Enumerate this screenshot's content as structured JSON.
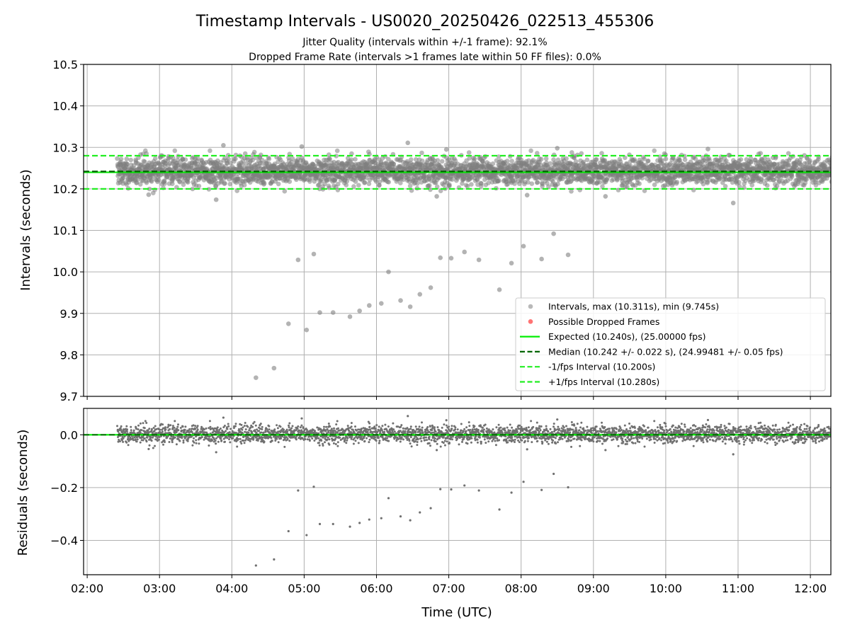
{
  "figure": {
    "title": "Timestamp Intervals - US0020_20250426_022513_455306",
    "subtitle_1": "Jitter Quality (intervals within +/-1 frame): 92.1%",
    "subtitle_2": "Dropped Frame Rate (intervals >1 frames late within 50 FF files): 0.0%"
  },
  "colors": {
    "points": "#808080",
    "dropped": "#ff0000",
    "expected": "#00ee00",
    "median": "#006400",
    "interval_lines": "#22ee22",
    "grid": "#b0b0b0"
  },
  "chart_data": [
    {
      "type": "scatter",
      "panel": "intervals",
      "ylabel": "Intervals (seconds)",
      "ylim": [
        9.7,
        10.5
      ],
      "yticks": [
        "9.7",
        "9.8",
        "9.9",
        "10.0",
        "10.1",
        "10.2",
        "10.3",
        "10.4",
        "10.5"
      ],
      "ytick_values": [
        9.7,
        9.8,
        9.9,
        10.0,
        10.1,
        10.2,
        10.3,
        10.4,
        10.5
      ],
      "grid": true,
      "legend_position": "lower-right",
      "bulk_series": {
        "name": "Intervals, max (10.311s), min (9.745s)",
        "x_range": [
          "02:25",
          "12:25"
        ],
        "center": 10.242,
        "spread": 0.022,
        "count": 3500
      },
      "outliers": [
        {
          "x": "04:20",
          "y": 9.745
        },
        {
          "x": "04:35",
          "y": 9.768
        },
        {
          "x": "04:47",
          "y": 9.875
        },
        {
          "x": "04:55",
          "y": 10.029
        },
        {
          "x": "05:02",
          "y": 9.86
        },
        {
          "x": "05:08",
          "y": 10.043
        },
        {
          "x": "05:13",
          "y": 9.902
        },
        {
          "x": "05:24",
          "y": 9.902
        },
        {
          "x": "05:38",
          "y": 9.892
        },
        {
          "x": "05:46",
          "y": 9.906
        },
        {
          "x": "05:54",
          "y": 9.919
        },
        {
          "x": "06:04",
          "y": 9.924
        },
        {
          "x": "06:10",
          "y": 10.0
        },
        {
          "x": "06:20",
          "y": 9.931
        },
        {
          "x": "06:28",
          "y": 9.916
        },
        {
          "x": "06:36",
          "y": 9.946
        },
        {
          "x": "06:45",
          "y": 9.962
        },
        {
          "x": "06:53",
          "y": 10.034
        },
        {
          "x": "07:02",
          "y": 10.033
        },
        {
          "x": "07:13",
          "y": 10.048
        },
        {
          "x": "07:25",
          "y": 10.029
        },
        {
          "x": "07:42",
          "y": 9.957
        },
        {
          "x": "07:52",
          "y": 10.021
        },
        {
          "x": "08:02",
          "y": 10.062
        },
        {
          "x": "08:17",
          "y": 10.031
        },
        {
          "x": "08:27",
          "y": 10.092
        },
        {
          "x": "08:39",
          "y": 10.041
        }
      ],
      "high_points": [
        {
          "x": "03:53",
          "y": 10.305
        },
        {
          "x": "04:58",
          "y": 10.302
        },
        {
          "x": "06:26",
          "y": 10.311
        },
        {
          "x": "06:58",
          "y": 10.295
        },
        {
          "x": "08:30",
          "y": 10.298
        },
        {
          "x": "10:35",
          "y": 10.296
        }
      ],
      "low_points": [
        {
          "x": "03:47",
          "y": 10.174
        },
        {
          "x": "10:56",
          "y": 10.166
        },
        {
          "x": "06:50",
          "y": 10.182
        },
        {
          "x": "09:10",
          "y": 10.182
        },
        {
          "x": "02:51",
          "y": 10.186
        },
        {
          "x": "08:05",
          "y": 10.185
        }
      ],
      "hlines": [
        {
          "name": "Expected (10.240s), (25.00000 fps)",
          "y": 10.24,
          "style": "solid",
          "color": "#00ee00"
        },
        {
          "name": "Median (10.242 +/- 0.022 s), (24.99481 +/- 0.05 fps)",
          "y": 10.242,
          "style": "dashed",
          "color": "#006400"
        },
        {
          "name": "-1/fps Interval (10.200s)",
          "y": 10.2,
          "style": "dashed",
          "color": "#22ee22"
        },
        {
          "name": "+1/fps Interval (10.280s)",
          "y": 10.28,
          "style": "dashed",
          "color": "#22ee22"
        }
      ],
      "legend": [
        {
          "label": "Intervals, max (10.311s), min (9.745s)",
          "kind": "marker",
          "color": "#808080"
        },
        {
          "label": "Possible Dropped Frames",
          "kind": "marker",
          "color": "#ff0000"
        },
        {
          "label": "Expected (10.240s), (25.00000 fps)",
          "kind": "line",
          "color": "#00ee00"
        },
        {
          "label": "Median (10.242 +/- 0.022 s), (24.99481 +/- 0.05 fps)",
          "kind": "dashed",
          "color": "#006400"
        },
        {
          "label": "-1/fps Interval (10.200s)",
          "kind": "dashed",
          "color": "#22ee22"
        },
        {
          "label": "+1/fps Interval (10.280s)",
          "kind": "dashed",
          "color": "#22ee22"
        }
      ]
    },
    {
      "type": "scatter",
      "panel": "residuals",
      "xlabel": "Time (UTC)",
      "ylabel": "Residuals (seconds)",
      "ylim": [
        -0.53,
        0.1
      ],
      "yticks": [
        "−0.4",
        "−0.2",
        "0.0"
      ],
      "ytick_values": [
        -0.4,
        -0.2,
        0.0
      ],
      "xlim": [
        "01:57",
        "12:17"
      ],
      "xticks": [
        "02:00",
        "03:00",
        "04:00",
        "05:00",
        "06:00",
        "07:00",
        "08:00",
        "09:00",
        "10:00",
        "11:00",
        "12:00"
      ],
      "grid": true,
      "zero_line": {
        "solid_color": "#00ee00",
        "dashed_color": "#006400"
      }
    }
  ]
}
